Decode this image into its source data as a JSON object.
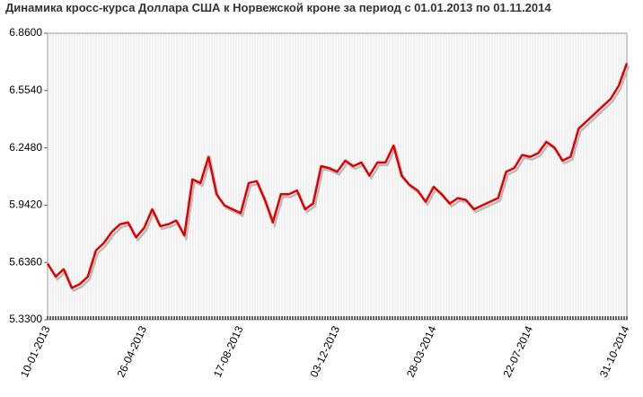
{
  "chart_data": {
    "type": "line",
    "title": "Динамика кросс-курса Доллара США к Норвежской кроне за период с 01.01.2013 по 01.11.2014",
    "categories": [
      "10-01-2013",
      null,
      null,
      null,
      null,
      null,
      null,
      null,
      null,
      null,
      null,
      null,
      "26-04-2013",
      null,
      null,
      null,
      null,
      null,
      null,
      null,
      null,
      null,
      null,
      null,
      "17-08-2013",
      null,
      null,
      null,
      null,
      null,
      null,
      null,
      null,
      null,
      null,
      null,
      "03-12-2013",
      null,
      null,
      null,
      null,
      null,
      null,
      null,
      null,
      null,
      null,
      null,
      "28-03-2014",
      null,
      null,
      null,
      null,
      null,
      null,
      null,
      null,
      null,
      null,
      null,
      "22-07-2014",
      null,
      null,
      null,
      null,
      null,
      null,
      null,
      null,
      null,
      null,
      null,
      "31-10-2014"
    ],
    "series": [
      {
        "color": "#e00000",
        "values": [
          5.63,
          5.56,
          5.6,
          5.5,
          5.52,
          5.56,
          5.7,
          5.74,
          5.8,
          5.84,
          5.85,
          5.77,
          5.82,
          5.92,
          5.83,
          5.84,
          5.86,
          5.78,
          6.08,
          6.06,
          6.2,
          6.0,
          5.94,
          5.92,
          5.9,
          6.06,
          6.07,
          5.97,
          5.85,
          6.0,
          6.0,
          6.02,
          5.92,
          5.95,
          6.15,
          6.14,
          6.12,
          6.18,
          6.15,
          6.17,
          6.1,
          6.17,
          6.17,
          6.26,
          6.1,
          6.05,
          6.02,
          5.96,
          6.04,
          6.0,
          5.95,
          5.98,
          5.97,
          5.92,
          5.94,
          5.96,
          5.98,
          6.12,
          6.14,
          6.21,
          6.2,
          6.22,
          6.28,
          6.25,
          6.18,
          6.2,
          6.35,
          6.39,
          6.43,
          6.47,
          6.51,
          6.58,
          6.7
        ]
      }
    ],
    "ylim": [
      5.33,
      6.86
    ],
    "yticks": [
      {
        "value": 5.33,
        "label": "5.3300"
      },
      {
        "value": 5.636,
        "label": "5.6360"
      },
      {
        "value": 5.942,
        "label": "5.9420"
      },
      {
        "value": 6.248,
        "label": "6.2480"
      },
      {
        "value": 6.554,
        "label": "6.5540"
      },
      {
        "value": 6.86,
        "label": "6.8600"
      }
    ],
    "grid": true
  }
}
